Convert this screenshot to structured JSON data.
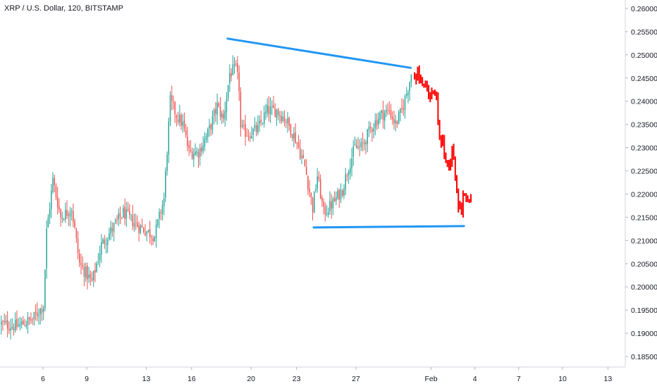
{
  "chart_data": {
    "type": "candlestick",
    "title": "XRP / U.S. Dollar, 120, BITSTAMP",
    "y_axis_side": "right",
    "ylim": [
      0.1825,
      0.2625
    ],
    "y_ticks": [
      "0.18500",
      "0.19000",
      "0.19500",
      "0.20000",
      "0.20500",
      "0.21000",
      "0.21500",
      "0.22000",
      "0.22500",
      "0.23000",
      "0.23500",
      "0.24000",
      "0.24500",
      "0.25000",
      "0.25500",
      "0.26000"
    ],
    "x_ticks": [
      "6",
      "9",
      "13",
      "16",
      "20",
      "23",
      "27",
      "Feb",
      "4",
      "7",
      "10",
      "13"
    ],
    "grid": false,
    "colors": {
      "up": "#26a69a",
      "down": "#ef5350",
      "trendline": "#2196f3",
      "projection": "#ff0000"
    },
    "price_path": [
      {
        "i": 0,
        "p": 0.192
      },
      {
        "i": 10,
        "p": 0.1915
      },
      {
        "i": 20,
        "p": 0.193
      },
      {
        "i": 27,
        "p": 0.196
      },
      {
        "i": 29,
        "p": 0.212
      },
      {
        "i": 33,
        "p": 0.223
      },
      {
        "i": 38,
        "p": 0.215
      },
      {
        "i": 45,
        "p": 0.217
      },
      {
        "i": 50,
        "p": 0.205
      },
      {
        "i": 58,
        "p": 0.201
      },
      {
        "i": 64,
        "p": 0.209
      },
      {
        "i": 70,
        "p": 0.212
      },
      {
        "i": 78,
        "p": 0.216
      },
      {
        "i": 88,
        "p": 0.213
      },
      {
        "i": 98,
        "p": 0.211
      },
      {
        "i": 104,
        "p": 0.219
      },
      {
        "i": 108,
        "p": 0.24
      },
      {
        "i": 112,
        "p": 0.237
      },
      {
        "i": 116,
        "p": 0.235
      },
      {
        "i": 120,
        "p": 0.229
      },
      {
        "i": 126,
        "p": 0.229
      },
      {
        "i": 132,
        "p": 0.233
      },
      {
        "i": 138,
        "p": 0.239
      },
      {
        "i": 142,
        "p": 0.236
      },
      {
        "i": 146,
        "p": 0.246
      },
      {
        "i": 150,
        "p": 0.247
      },
      {
        "i": 152,
        "p": 0.243
      },
      {
        "i": 153,
        "p": 0.234
      },
      {
        "i": 158,
        "p": 0.233
      },
      {
        "i": 164,
        "p": 0.234
      },
      {
        "i": 170,
        "p": 0.238
      },
      {
        "i": 176,
        "p": 0.238
      },
      {
        "i": 182,
        "p": 0.236
      },
      {
        "i": 188,
        "p": 0.232
      },
      {
        "i": 194,
        "p": 0.226
      },
      {
        "i": 199,
        "p": 0.217
      },
      {
        "i": 202,
        "p": 0.224
      },
      {
        "i": 206,
        "p": 0.216
      },
      {
        "i": 212,
        "p": 0.218
      },
      {
        "i": 218,
        "p": 0.221
      },
      {
        "i": 222,
        "p": 0.226
      },
      {
        "i": 226,
        "p": 0.23
      },
      {
        "i": 230,
        "p": 0.23
      },
      {
        "i": 236,
        "p": 0.234
      },
      {
        "i": 242,
        "p": 0.237
      },
      {
        "i": 248,
        "p": 0.238
      },
      {
        "i": 252,
        "p": 0.235
      },
      {
        "i": 256,
        "p": 0.238
      },
      {
        "i": 260,
        "p": 0.243
      },
      {
        "i": 262,
        "p": 0.246
      }
    ],
    "projection_path": [
      {
        "i": 264,
        "p": 0.2458
      },
      {
        "i": 266,
        "p": 0.2465
      },
      {
        "i": 268,
        "p": 0.2452
      },
      {
        "i": 270,
        "p": 0.244
      },
      {
        "i": 272,
        "p": 0.242
      },
      {
        "i": 274,
        "p": 0.241
      },
      {
        "i": 276,
        "p": 0.243
      },
      {
        "i": 278,
        "p": 0.24
      },
      {
        "i": 280,
        "p": 0.232
      },
      {
        "i": 282,
        "p": 0.231
      },
      {
        "i": 284,
        "p": 0.226
      },
      {
        "i": 286,
        "p": 0.227
      },
      {
        "i": 288,
        "p": 0.229
      },
      {
        "i": 290,
        "p": 0.225
      },
      {
        "i": 292,
        "p": 0.218
      },
      {
        "i": 294,
        "p": 0.217
      },
      {
        "i": 296,
        "p": 0.22
      },
      {
        "i": 298,
        "p": 0.219
      },
      {
        "i": 300,
        "p": 0.218
      }
    ],
    "trendlines": [
      {
        "name": "resistance",
        "from": {
          "i": 145,
          "p": 0.2535
        },
        "to": {
          "i": 262,
          "p": 0.2472
        }
      },
      {
        "name": "support",
        "from": {
          "i": 200,
          "p": 0.2128
        },
        "to": {
          "i": 296,
          "p": 0.2131
        }
      }
    ]
  }
}
